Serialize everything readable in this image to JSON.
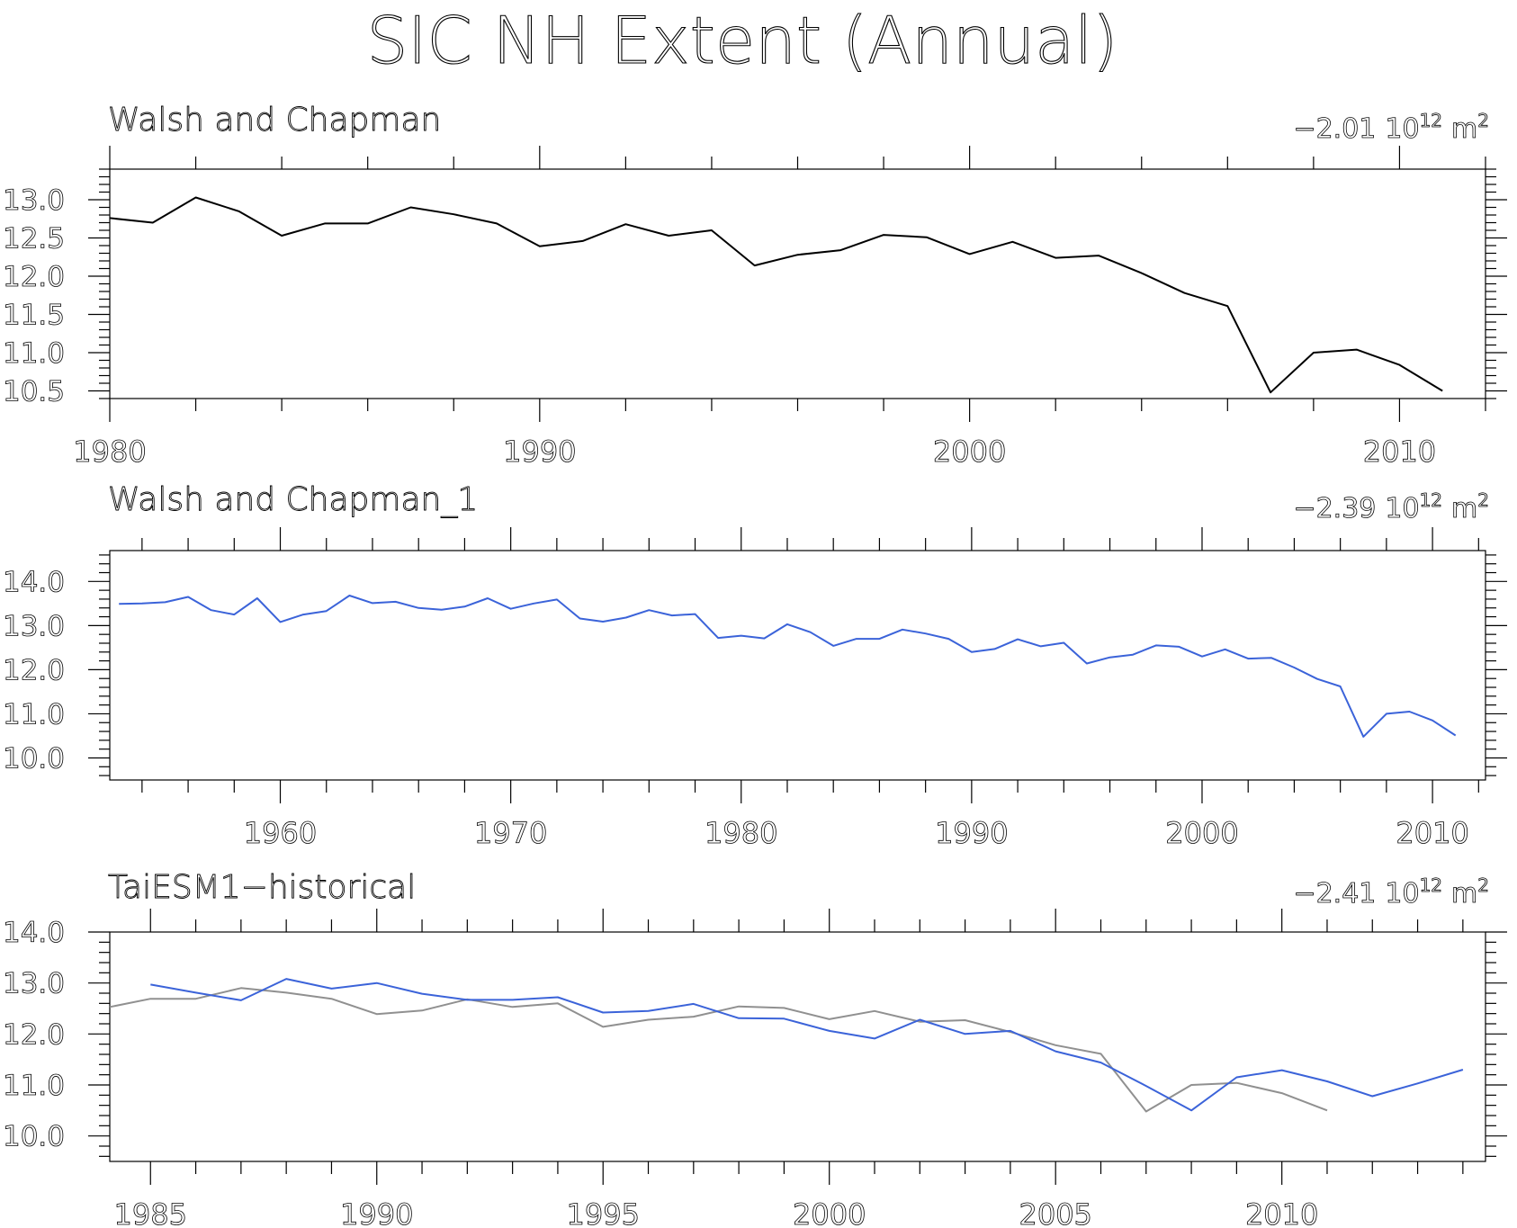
{
  "figure_title": "SIC NH Extent (Annual)",
  "colors": {
    "black": "#000000",
    "blue": "#3b63d9",
    "gray": "#909090"
  },
  "chart_data": [
    {
      "type": "line",
      "title": "Walsh and Chapman",
      "trend_value": "−2.01",
      "trend_unit_base": "10",
      "trend_unit_exp": "12",
      "trend_unit_m": "m",
      "trend_unit_sq": "2",
      "xlim": [
        1980,
        2012
      ],
      "ylim": [
        10.4,
        13.4
      ],
      "x_major_ticks": [
        1980,
        1990,
        2000,
        2010
      ],
      "x_minor_step": 2,
      "y_major_ticks": [
        10.5,
        11.0,
        11.5,
        12.0,
        12.5,
        13.0
      ],
      "y_tick_labels": [
        "10.5",
        "11.0",
        "11.5",
        "12.0",
        "12.5",
        "13.0"
      ],
      "y_minor_step": 0.1,
      "series": [
        {
          "color": "#000000",
          "x": [
            1980,
            1981,
            1982,
            1983,
            1984,
            1985,
            1986,
            1987,
            1988,
            1989,
            1990,
            1991,
            1992,
            1993,
            1994,
            1995,
            1996,
            1997,
            1998,
            1999,
            2000,
            2001,
            2002,
            2003,
            2004,
            2005,
            2006,
            2007,
            2008,
            2009,
            2010,
            2011
          ],
          "values": [
            12.76,
            12.7,
            13.03,
            12.85,
            12.53,
            12.69,
            12.69,
            12.9,
            12.81,
            12.69,
            12.39,
            12.46,
            12.68,
            12.53,
            12.6,
            12.14,
            12.28,
            12.34,
            12.54,
            12.51,
            12.29,
            12.45,
            12.24,
            12.27,
            12.04,
            11.78,
            11.61,
            10.48,
            11.0,
            11.04,
            10.84,
            10.5
          ]
        }
      ]
    },
    {
      "type": "line",
      "title": "Walsh and Chapman_1",
      "trend_value": "−2.39",
      "trend_unit_base": "10",
      "trend_unit_exp": "12",
      "trend_unit_m": "m",
      "trend_unit_sq": "2",
      "xlim": [
        1952.6,
        2012.3
      ],
      "ylim": [
        9.5,
        14.7
      ],
      "x_major_ticks": [
        1960,
        1970,
        1980,
        1990,
        2000,
        2010
      ],
      "x_minor_step": 2,
      "y_major_ticks": [
        10.0,
        11.0,
        12.0,
        13.0,
        14.0
      ],
      "y_tick_labels": [
        "10.0",
        "11.0",
        "12.0",
        "13.0",
        "14.0"
      ],
      "y_minor_step": 0.2,
      "series": [
        {
          "color": "#3b63d9",
          "x": [
            1953,
            1954,
            1955,
            1956,
            1957,
            1958,
            1959,
            1960,
            1961,
            1962,
            1963,
            1964,
            1965,
            1966,
            1967,
            1968,
            1969,
            1970,
            1971,
            1972,
            1973,
            1974,
            1975,
            1976,
            1977,
            1978,
            1979,
            1980,
            1981,
            1982,
            1983,
            1984,
            1985,
            1986,
            1987,
            1988,
            1989,
            1990,
            1991,
            1992,
            1993,
            1994,
            1995,
            1996,
            1997,
            1998,
            1999,
            2000,
            2001,
            2002,
            2003,
            2004,
            2005,
            2006,
            2007,
            2008,
            2009,
            2010,
            2011
          ],
          "values": [
            13.49,
            13.5,
            13.53,
            13.65,
            13.35,
            13.25,
            13.62,
            13.08,
            13.25,
            13.33,
            13.68,
            13.51,
            13.54,
            13.4,
            13.36,
            13.43,
            13.62,
            13.38,
            13.5,
            13.59,
            13.16,
            13.09,
            13.18,
            13.35,
            13.23,
            13.26,
            12.72,
            12.77,
            12.71,
            13.03,
            12.85,
            12.54,
            12.7,
            12.7,
            12.91,
            12.82,
            12.7,
            12.4,
            12.47,
            12.69,
            12.53,
            12.61,
            12.14,
            12.28,
            12.34,
            12.55,
            12.52,
            12.3,
            12.46,
            12.25,
            12.27,
            12.05,
            11.79,
            11.62,
            10.48,
            11.0,
            11.05,
            10.85,
            10.51
          ]
        }
      ]
    },
    {
      "type": "line",
      "title": "TaiESM1−historical",
      "trend_value": "−2.41",
      "trend_unit_base": "10",
      "trend_unit_exp": "12",
      "trend_unit_m": "m",
      "trend_unit_sq": "2",
      "xlim": [
        1984.1,
        2014.5
      ],
      "ylim": [
        9.5,
        14.0
      ],
      "x_major_ticks": [
        1985,
        1990,
        1995,
        2000,
        2005,
        2010
      ],
      "x_minor_step": 1,
      "y_major_ticks": [
        10.0,
        11.0,
        12.0,
        13.0,
        14.0
      ],
      "y_tick_labels": [
        "10.0",
        "11.0",
        "12.0",
        "13.0",
        "14.0"
      ],
      "y_minor_step": 0.2,
      "series": [
        {
          "color": "#909090",
          "x": [
            1984,
            1985,
            1986,
            1987,
            1988,
            1989,
            1990,
            1991,
            1992,
            1993,
            1994,
            1995,
            1996,
            1997,
            1998,
            1999,
            2000,
            2001,
            2002,
            2003,
            2004,
            2005,
            2006,
            2007,
            2008,
            2009,
            2010,
            2011
          ],
          "values": [
            12.53,
            12.69,
            12.69,
            12.9,
            12.81,
            12.69,
            12.39,
            12.46,
            12.68,
            12.53,
            12.6,
            12.14,
            12.28,
            12.34,
            12.54,
            12.51,
            12.29,
            12.45,
            12.24,
            12.27,
            12.04,
            11.78,
            11.61,
            10.48,
            11.0,
            11.04,
            10.84,
            10.5
          ]
        },
        {
          "color": "#3b63d9",
          "x": [
            1985,
            1986,
            1987,
            1988,
            1989,
            1990,
            1991,
            1992,
            1993,
            1994,
            1995,
            1996,
            1997,
            1998,
            1999,
            2000,
            2001,
            2002,
            2003,
            2004,
            2005,
            2006,
            2007,
            2008,
            2009,
            2010,
            2011,
            2012,
            2013,
            2014
          ],
          "values": [
            12.97,
            12.81,
            12.66,
            13.08,
            12.89,
            13.0,
            12.79,
            12.67,
            12.67,
            12.72,
            12.42,
            12.45,
            12.59,
            12.31,
            12.3,
            12.06,
            11.91,
            12.28,
            12.0,
            12.06,
            11.66,
            11.44,
            10.98,
            10.5,
            11.15,
            11.29,
            11.07,
            10.78,
            11.03,
            11.3
          ]
        }
      ]
    }
  ]
}
